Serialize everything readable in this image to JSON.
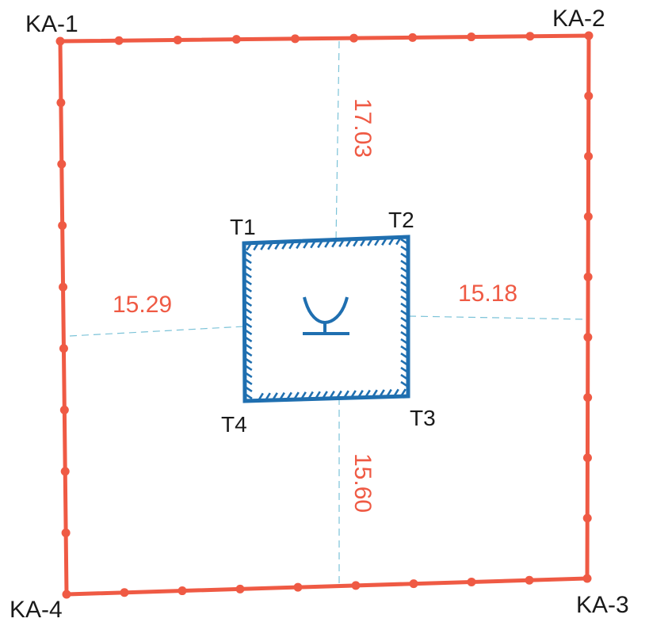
{
  "colors": {
    "boundary": "#ef5a44",
    "building": "#1f6fb0",
    "dimension_text": "#ef5a44",
    "dimension_line": "#7cc3d8",
    "label": "#1a1a1a"
  },
  "boundary": {
    "corners": [
      {
        "id": "ka1",
        "label": "KA-1"
      },
      {
        "id": "ka2",
        "label": "KA-2"
      },
      {
        "id": "ka3",
        "label": "KA-3"
      },
      {
        "id": "ka4",
        "label": "KA-4"
      }
    ]
  },
  "building": {
    "corners": [
      {
        "id": "t1",
        "label": "T1"
      },
      {
        "id": "t2",
        "label": "T2"
      },
      {
        "id": "t3",
        "label": "T3"
      },
      {
        "id": "t4",
        "label": "T4"
      }
    ],
    "symbol": "well-symbol-icon"
  },
  "dimensions": {
    "top": "17.03",
    "left": "15.29",
    "right": "15.18",
    "bottom": "15.60"
  }
}
